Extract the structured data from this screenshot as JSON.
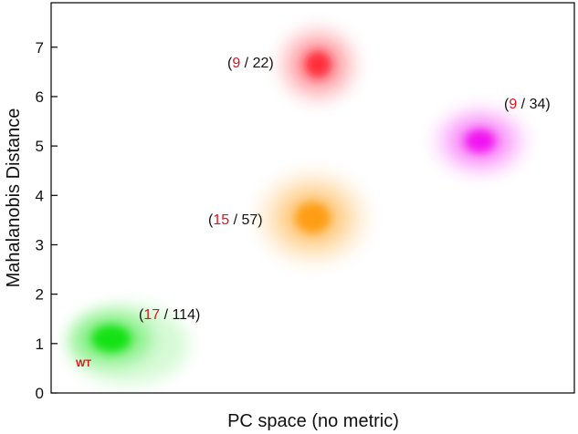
{
  "chart_data": {
    "type": "scatter",
    "title": "",
    "xlabel": "PC space (no metric)",
    "ylabel": "Mahalanobis Distance",
    "ylim": [
      0,
      7.9
    ],
    "xlim": [
      0,
      10
    ],
    "yticks": [
      0,
      1,
      2,
      3,
      4,
      5,
      6,
      7
    ],
    "x_tick_labels_shown": false,
    "grid": false,
    "legend": "none",
    "series": [
      {
        "color": "#00e000",
        "center": {
          "x": 1.15,
          "y": 1.1
        },
        "count_red": "17",
        "count_total": "114",
        "annotation_extra": "WT"
      },
      {
        "color": "#ff9500",
        "center": {
          "x": 5.0,
          "y": 3.55
        },
        "count_red": "15",
        "count_total": "57"
      },
      {
        "color": "#ff1a2a",
        "center": {
          "x": 5.1,
          "y": 6.65
        },
        "count_red": "9",
        "count_total": "22"
      },
      {
        "color": "#f000f0",
        "center": {
          "x": 8.2,
          "y": 5.1
        },
        "count_red": "9",
        "count_total": "34"
      }
    ],
    "annotation_color_red": "#e0141e"
  }
}
